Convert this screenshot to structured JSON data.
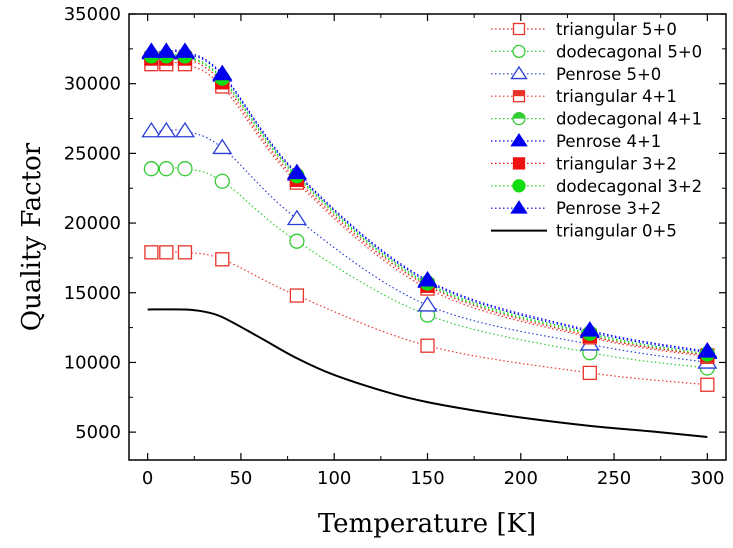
{
  "chart_data": {
    "type": "line",
    "xlabel": "Temperature [K]",
    "ylabel": "Quality Factor",
    "xlim": [
      -10,
      310
    ],
    "ylim": [
      3000,
      35000
    ],
    "xticks": [
      0,
      50,
      100,
      150,
      200,
      250,
      300
    ],
    "yticks": [
      5000,
      10000,
      15000,
      20000,
      25000,
      30000,
      35000
    ],
    "legend_position": "top-right",
    "grid": false,
    "x": [
      2,
      10,
      20,
      40,
      80,
      150,
      237,
      300
    ],
    "series": [
      {
        "name": "triangular 5+0",
        "color": "#e8332a",
        "marker": "square",
        "filled": false,
        "line": "dotted",
        "values": [
          17900,
          17900,
          17900,
          17400,
          14800,
          11200,
          9250,
          8400
        ]
      },
      {
        "name": "dodecagonal 5+0",
        "color": "#33cc33",
        "marker": "circle",
        "filled": false,
        "line": "dotted",
        "values": [
          23900,
          23900,
          23900,
          23000,
          18700,
          13400,
          10700,
          9600
        ]
      },
      {
        "name": "Penrose 5+0",
        "color": "#2a3fd6",
        "marker": "triangle",
        "filled": false,
        "line": "dotted",
        "values": [
          26600,
          26600,
          26600,
          25400,
          20300,
          14100,
          11300,
          10000
        ]
      },
      {
        "name": "triangular 4+1",
        "color": "#e8332a",
        "marker": "square",
        "filled": "half",
        "line": "dotted",
        "values": [
          31400,
          31400,
          31400,
          29800,
          22900,
          15300,
          11800,
          10400
        ]
      },
      {
        "name": "dodecagonal 4+1",
        "color": "#33cc33",
        "marker": "circle",
        "filled": "half",
        "line": "dotted",
        "values": [
          31900,
          31900,
          31900,
          30300,
          23300,
          15600,
          12000,
          10500
        ]
      },
      {
        "name": "Penrose 4+1",
        "color": "#0000ee",
        "marker": "triangle",
        "filled": true,
        "line": "dotted",
        "values": [
          32200,
          32200,
          32200,
          30600,
          23500,
          15800,
          12200,
          10700
        ]
      },
      {
        "name": "triangular 3+2",
        "color": "#ee1111",
        "marker": "square",
        "filled": true,
        "line": "dotted",
        "values": [
          31800,
          31800,
          31800,
          30100,
          23100,
          15500,
          11900,
          10500
        ]
      },
      {
        "name": "dodecagonal 3+2",
        "color": "#11dd11",
        "marker": "circle",
        "filled": true,
        "line": "dotted",
        "values": [
          32000,
          32000,
          32000,
          30400,
          23400,
          15700,
          12100,
          10600
        ]
      },
      {
        "name": "Penrose 3+2",
        "color": "#0000ee",
        "marker": "triangle",
        "filled": true,
        "line": "dotted",
        "values": [
          32300,
          32300,
          32300,
          30700,
          23600,
          15900,
          12300,
          10800
        ]
      },
      {
        "name": "triangular 0+5",
        "color": "#000000",
        "marker": "none",
        "line": "solid",
        "x": [
          0,
          20,
          30,
          40,
          60,
          80,
          100,
          130,
          150,
          175,
          200,
          237,
          270,
          300
        ],
        "values": [
          13800,
          13800,
          13650,
          13250,
          11800,
          10300,
          9100,
          7800,
          7150,
          6550,
          6050,
          5450,
          5050,
          4650
        ]
      }
    ]
  }
}
